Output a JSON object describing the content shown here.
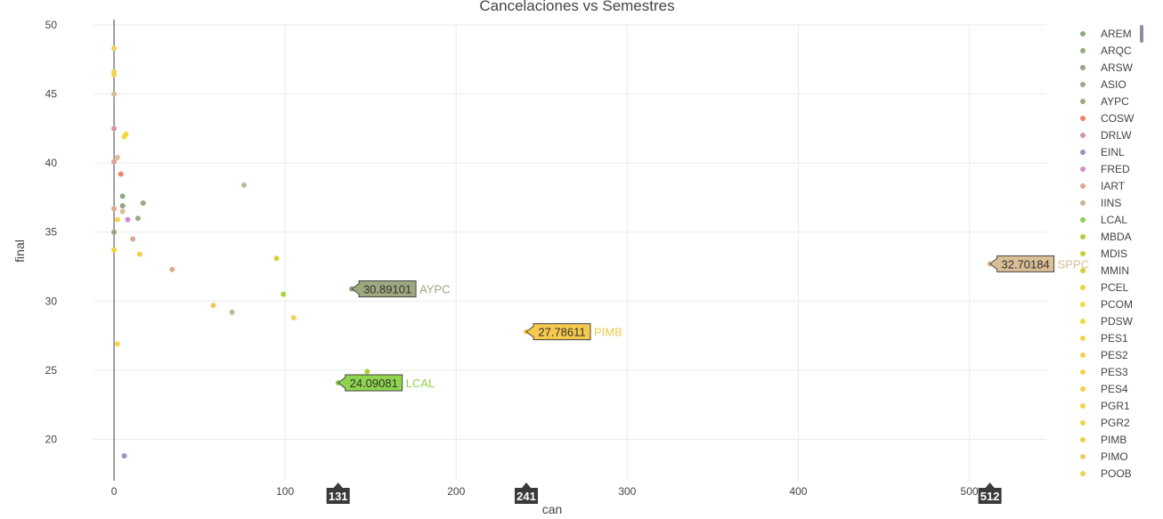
{
  "chart_data": {
    "type": "scatter",
    "title": "Cancelaciones vs Semestres",
    "xlabel": "can",
    "ylabel": "final",
    "xlim": [
      -12,
      545
    ],
    "ylim": [
      17,
      50
    ],
    "xticks": [
      0,
      100,
      200,
      300,
      400,
      500
    ],
    "yticks": [
      20,
      25,
      30,
      35,
      40,
      45,
      50
    ],
    "grid": true,
    "legend_position": "right",
    "series": [
      {
        "name": "AREM",
        "color": "#8fa87c",
        "points": [
          [
            5,
            37.6
          ]
        ]
      },
      {
        "name": "ARQC",
        "color": "#96aa82",
        "points": [
          [
            17,
            37.1
          ]
        ]
      },
      {
        "name": "ARSW",
        "color": "#96a582",
        "points": [
          [
            0,
            35.0
          ],
          [
            5,
            36.9
          ]
        ]
      },
      {
        "name": "ASIO",
        "color": "#a0a88a",
        "points": [
          [
            14,
            36.0
          ]
        ]
      },
      {
        "name": "AYPC",
        "color": "#9ea87e",
        "points": [
          [
            139,
            30.89101
          ]
        ]
      },
      {
        "name": "COSW",
        "color": "#f08262",
        "points": [
          [
            4,
            39.2
          ]
        ]
      },
      {
        "name": "DRLW",
        "color": "#d993a6",
        "points": [
          [
            0,
            42.5
          ]
        ]
      },
      {
        "name": "EINL",
        "color": "#9d94bb",
        "points": [
          [
            6,
            18.8
          ]
        ]
      },
      {
        "name": "FRED",
        "color": "#d58ccc",
        "points": [
          [
            8,
            35.9
          ]
        ]
      },
      {
        "name": "IART",
        "color": "#dca88f",
        "points": [
          [
            0,
            40.1
          ],
          [
            0,
            36.7
          ],
          [
            11,
            34.5
          ],
          [
            34,
            32.3
          ]
        ]
      },
      {
        "name": "IINS",
        "color": "#c4b697",
        "points": [
          [
            76,
            38.4
          ],
          [
            69,
            29.2
          ]
        ]
      },
      {
        "name": "LCAL",
        "color": "#8ed44c",
        "points": [
          [
            131,
            24.09081
          ]
        ]
      },
      {
        "name": "MBDA",
        "color": "#a8d33a",
        "points": [
          [
            99,
            30.5
          ],
          [
            148,
            24.9
          ]
        ]
      },
      {
        "name": "MDIS",
        "color": "#c4cf3a",
        "points": []
      },
      {
        "name": "MMIN",
        "color": "#d5d03a",
        "points": [
          [
            95,
            33.1
          ]
        ]
      },
      {
        "name": "PCEL",
        "color": "#f0d43a",
        "points": [
          [
            0,
            33.7
          ]
        ]
      },
      {
        "name": "PCOM",
        "color": "#f6d840",
        "points": [
          [
            7,
            42.1
          ]
        ]
      },
      {
        "name": "PDSW",
        "color": "#f6d840",
        "points": [
          [
            6,
            41.9
          ]
        ]
      },
      {
        "name": "PES1",
        "color": "#f5d24c",
        "points": [
          [
            0,
            48.3
          ]
        ]
      },
      {
        "name": "PES2",
        "color": "#f5d24c",
        "points": [
          [
            0,
            46.6
          ]
        ]
      },
      {
        "name": "PES3",
        "color": "#f5d24c",
        "points": [
          [
            0,
            46.4
          ]
        ]
      },
      {
        "name": "PES4",
        "color": "#f5d24c",
        "points": [
          [
            2,
            35.9
          ]
        ]
      },
      {
        "name": "PGR1",
        "color": "#f5d24c",
        "points": [
          [
            15,
            33.4
          ]
        ]
      },
      {
        "name": "PGR2",
        "color": "#f5d24c",
        "points": [
          [
            2,
            26.9
          ]
        ]
      },
      {
        "name": "PIMB",
        "color": "#f5c94c",
        "points": [
          [
            241,
            27.78611
          ]
        ]
      },
      {
        "name": "PIMO",
        "color": "#f2c95a",
        "points": [
          [
            58,
            29.7
          ]
        ]
      },
      {
        "name": "POOB",
        "color": "#f0cf5e",
        "points": [
          [
            105,
            28.8
          ]
        ]
      },
      {
        "name": "SPPC",
        "color": "#d9be96",
        "points": [
          [
            512,
            32.70184
          ],
          [
            0,
            45.0
          ],
          [
            2,
            40.4
          ],
          [
            5,
            36.5
          ]
        ]
      }
    ],
    "hover_labels": [
      {
        "series": "AYPC",
        "x": 139,
        "y": 30.89101,
        "text": "30.89101",
        "name": "AYPC",
        "color": "#9ea87e"
      },
      {
        "series": "PIMB",
        "x": 241,
        "y": 27.78611,
        "text": "27.78611",
        "name": "PIMB",
        "color": "#f5c94c"
      },
      {
        "series": "LCAL",
        "x": 131,
        "y": 24.09081,
        "text": "24.09081",
        "name": "LCAL",
        "color": "#8ed44c"
      },
      {
        "series": "SPPC",
        "x": 512,
        "y": 32.70184,
        "text": "32.70184",
        "name": "SPPC",
        "color": "#d9be96"
      }
    ],
    "x_spike_labels": [
      "131",
      "241",
      "512"
    ]
  }
}
